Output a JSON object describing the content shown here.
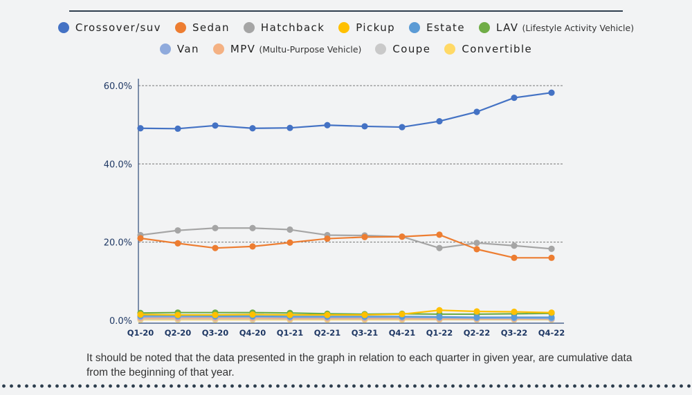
{
  "chart_data": {
    "type": "line",
    "categories": [
      "Q1-20",
      "Q2-20",
      "Q3-20",
      "Q4-20",
      "Q1-21",
      "Q2-21",
      "Q3-21",
      "Q4-21",
      "Q1-22",
      "Q2-22",
      "Q3-22",
      "Q4-22"
    ],
    "ylim": [
      0,
      60
    ],
    "yticks": [
      "0.0%",
      "20.0%",
      "40.0%",
      "60.0%"
    ],
    "ytick_values": [
      0,
      20,
      40,
      60
    ],
    "grid": "horizontal dashed",
    "legend_position": "top",
    "series": [
      {
        "name": "Crossover/suv",
        "sub": "",
        "color": "#4472c4",
        "values": [
          49.1,
          49.0,
          49.8,
          49.1,
          49.2,
          49.9,
          49.6,
          49.4,
          50.9,
          53.3,
          56.9,
          58.2
        ]
      },
      {
        "name": "Sedan",
        "sub": "",
        "color": "#ed7d31",
        "values": [
          21.0,
          19.7,
          18.5,
          18.9,
          19.9,
          20.9,
          21.3,
          21.4,
          21.9,
          18.2,
          16.0,
          16.0
        ]
      },
      {
        "name": "Hatchback",
        "sub": "",
        "color": "#a5a5a5",
        "values": [
          21.8,
          23.0,
          23.6,
          23.6,
          23.2,
          21.8,
          21.7,
          21.4,
          18.5,
          19.8,
          19.1,
          18.3
        ]
      },
      {
        "name": "Pickup",
        "sub": "",
        "color": "#ffc000",
        "values": [
          1.5,
          1.4,
          1.4,
          1.5,
          1.4,
          1.4,
          1.4,
          1.6,
          2.6,
          2.3,
          2.2,
          2.0
        ]
      },
      {
        "name": "Estate",
        "sub": "",
        "color": "#5b9bd5",
        "values": [
          1.2,
          1.2,
          1.1,
          1.1,
          1.0,
          1.0,
          1.0,
          1.0,
          0.9,
          0.8,
          0.8,
          0.8
        ]
      },
      {
        "name": "LAV",
        "sub": "(Lifestyle Activity Vehicle)",
        "color": "#70ad47",
        "values": [
          1.9,
          2.0,
          2.0,
          2.0,
          1.9,
          1.7,
          1.6,
          1.7,
          1.6,
          1.6,
          1.7,
          1.8
        ]
      },
      {
        "name": "Van",
        "sub": "",
        "color": "#8faadc",
        "values": [
          0.9,
          0.9,
          0.9,
          0.9,
          0.8,
          0.8,
          0.8,
          0.8,
          0.7,
          0.6,
          0.6,
          0.5
        ]
      },
      {
        "name": "MPV",
        "sub": "(Multu-Purpose Vehicle)",
        "color": "#f4b183",
        "values": [
          0.6,
          0.6,
          0.6,
          0.6,
          0.5,
          0.5,
          0.5,
          0.5,
          0.4,
          0.4,
          0.4,
          0.4
        ]
      },
      {
        "name": "Coupe",
        "sub": "",
        "color": "#c9c9c9",
        "values": [
          0.4,
          0.4,
          0.4,
          0.4,
          0.4,
          0.4,
          0.4,
          0.4,
          0.3,
          0.3,
          0.3,
          0.3
        ]
      },
      {
        "name": "Convertible",
        "sub": "",
        "color": "#ffd966",
        "values": [
          0.2,
          0.2,
          0.2,
          0.2,
          0.2,
          0.2,
          0.2,
          0.2,
          0.2,
          0.2,
          0.2,
          0.2
        ]
      }
    ]
  },
  "note": "It should be noted that the data presented in the graph in relation to each quarter in given year, are cumulative data from the beginning of that year."
}
